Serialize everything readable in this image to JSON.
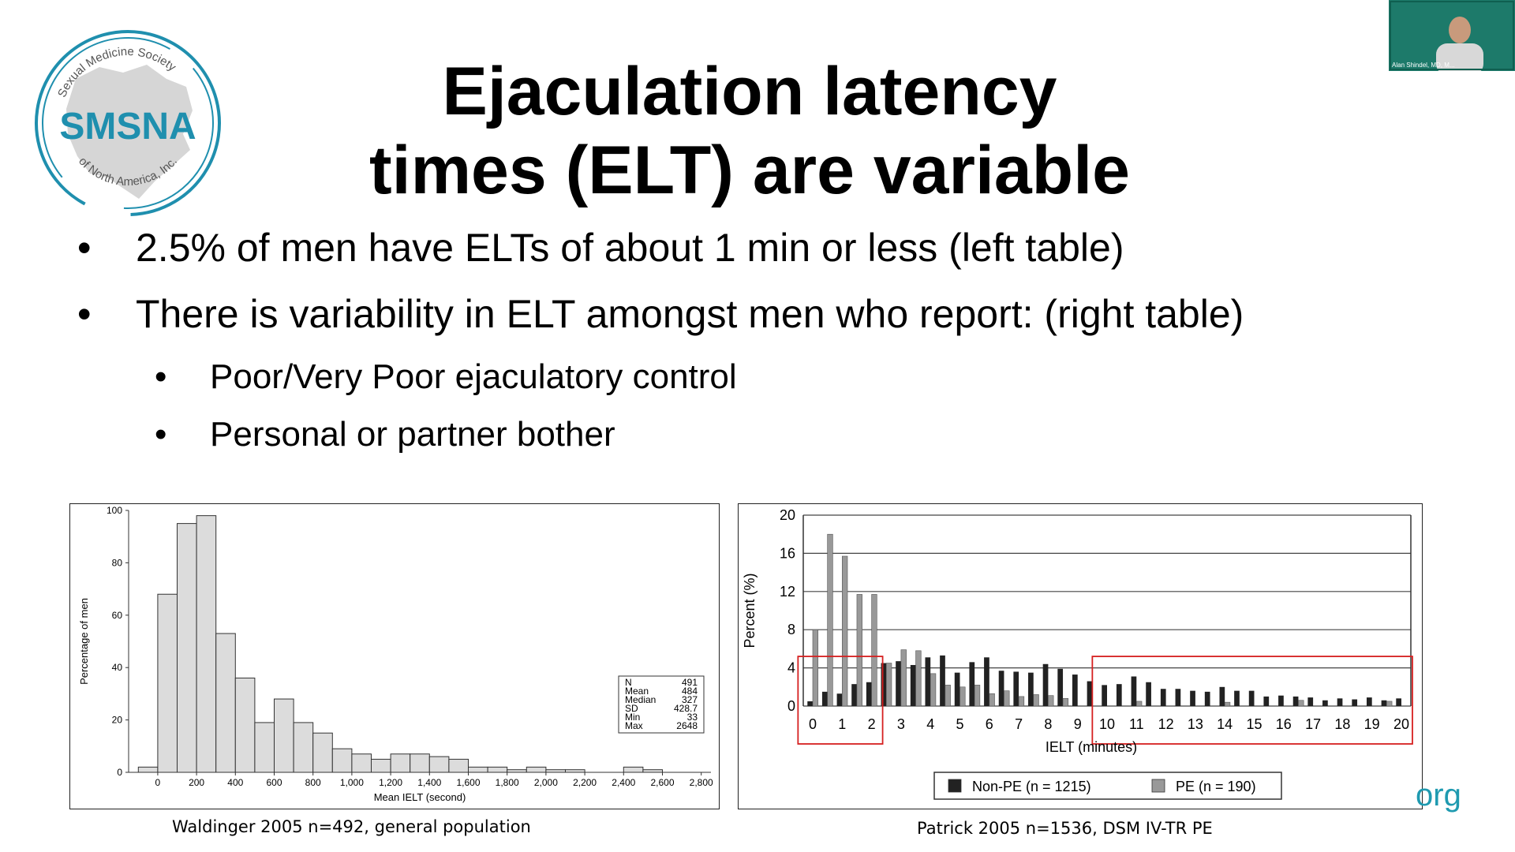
{
  "slide": {
    "title_line1": "Ejaculation latency",
    "title_line2": "times (ELT) are variable",
    "bullets": [
      "2.5% of men have ELTs of about 1 min or less (left table)",
      "There is variability in ELT amongst men who report: (right table)"
    ],
    "sub_bullets": [
      "Poor/Very Poor ejaculatory control",
      "Personal or partner bother"
    ],
    "bullet_char": "•",
    "logo": {
      "top_text": "Sexual Medicine Society",
      "center_text": "SMSNA",
      "bottom_text": "of North America, Inc.",
      "color": "#1f8fae"
    },
    "footer_fragment": "org",
    "captions": {
      "left": "Waldinger 2005 n=492, general population",
      "right": "Patrick 2005 n=1536, DSM IV-TR PE"
    },
    "video": {
      "participant_name": "Alan Shindel, MD, M..."
    }
  },
  "chart_data": [
    {
      "type": "bar",
      "xlabel": "Mean IELT (second)",
      "ylabel": "Percentage of men",
      "ylim": [
        0,
        100
      ],
      "yticks": [
        0,
        20,
        40,
        60,
        80,
        100
      ],
      "xticks": [
        "0",
        "200",
        "400",
        "600",
        "800",
        "1,000",
        "1,200",
        "1,400",
        "1,600",
        "1,800",
        "2,000",
        "2,200",
        "2,400",
        "2,600",
        "2,800"
      ],
      "bin_width": 100,
      "bin_starts": [
        -100,
        0,
        100,
        200,
        300,
        400,
        500,
        600,
        700,
        800,
        900,
        1000,
        1100,
        1200,
        1300,
        1400,
        1500,
        1600,
        1700,
        1800,
        1900,
        2000,
        2100,
        2200,
        2300,
        2400,
        2500,
        2600
      ],
      "values": [
        2,
        68,
        95,
        98,
        53,
        36,
        19,
        28,
        19,
        15,
        9,
        7,
        5,
        7,
        7,
        6,
        5,
        2,
        2,
        1,
        2,
        1,
        1,
        0,
        0,
        2,
        1,
        0
      ],
      "bar_color": "#dcdcdc",
      "stats": [
        {
          "label": "N",
          "value": "491"
        },
        {
          "label": "Mean",
          "value": "484"
        },
        {
          "label": "Median",
          "value": "327"
        },
        {
          "label": "SD",
          "value": "428.7"
        },
        {
          "label": "Min",
          "value": "33"
        },
        {
          "label": "Max",
          "value": "2648"
        }
      ]
    },
    {
      "type": "bar",
      "xlabel": "IELT (minutes)",
      "ylabel": "Percent (%)",
      "ylim": [
        0,
        20
      ],
      "yticks": [
        0,
        4,
        8,
        12,
        16,
        20
      ],
      "grid": true,
      "x_tick_labels": [
        "0",
        "1",
        "2",
        "3",
        "4",
        "5",
        "6",
        "7",
        "8",
        "9",
        "10",
        "11",
        "12",
        "13",
        "14",
        "15",
        "16",
        "17",
        "18",
        "19",
        "20"
      ],
      "bins_per_minute": 2,
      "series": [
        {
          "name": "Non-PE (n = 1215)",
          "color": "#222222",
          "values": [
            0.5,
            1.5,
            1.3,
            2.3,
            2.5,
            4.5,
            4.7,
            4.3,
            5.1,
            5.3,
            3.5,
            4.6,
            5.1,
            3.7,
            3.6,
            3.5,
            4.4,
            3.9,
            3.3,
            2.6,
            2.2,
            2.3,
            3.1,
            2.5,
            1.8,
            1.8,
            1.6,
            1.5,
            2.0,
            1.6,
            1.6,
            1.0,
            1.1,
            1.0,
            0.9,
            0.6,
            0.8,
            0.7,
            0.9,
            0.6,
            0.8
          ]
        },
        {
          "name": "PE (n = 190)",
          "color": "#999999",
          "values": [
            8.0,
            18.0,
            15.7,
            11.7,
            11.7,
            4.5,
            5.9,
            5.8,
            3.4,
            2.2,
            2.0,
            2.2,
            1.3,
            1.6,
            1.0,
            1.2,
            1.1,
            0.8,
            0,
            0,
            0,
            0,
            0.5,
            0,
            0,
            0,
            0,
            0,
            0.4,
            0,
            0,
            0,
            0,
            0.6,
            0,
            0,
            0,
            0,
            0,
            0.5,
            0
          ]
        }
      ],
      "highlight_ranges": [
        [
          0,
          2
        ],
        [
          10,
          20
        ]
      ],
      "highlight_color": "#d62020"
    }
  ]
}
